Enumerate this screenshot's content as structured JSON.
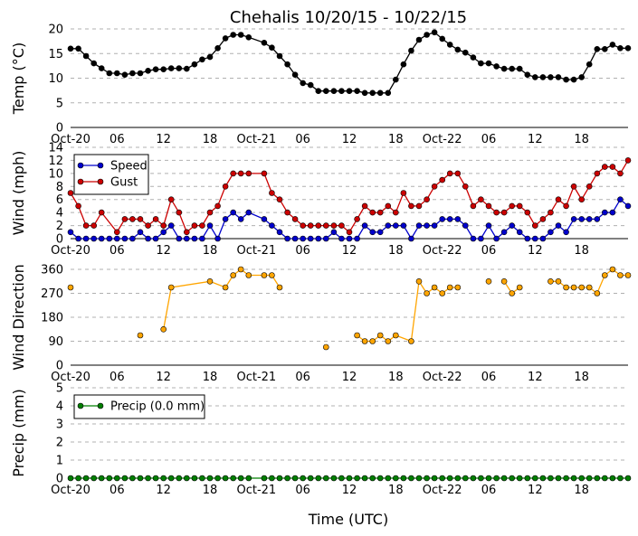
{
  "figure": {
    "title": "Chehalis 10/20/15 - 10/22/15",
    "xlabel": "Time (UTC)",
    "x_tick_labels": [
      "Oct-20",
      "06",
      "12",
      "18",
      "Oct-21",
      "06",
      "12",
      "18",
      "Oct-22",
      "06",
      "12",
      "18"
    ],
    "x_tick_hours": [
      0,
      6,
      12,
      18,
      24,
      30,
      36,
      42,
      48,
      54,
      60,
      66
    ],
    "xlim": [
      0,
      72
    ]
  },
  "chart_data": [
    {
      "type": "line",
      "ylabel": "Temp (°C)",
      "ylim": [
        0,
        20
      ],
      "yticks": [
        0,
        5,
        10,
        15,
        20
      ],
      "grid": true,
      "series": [
        {
          "color": "#000000",
          "x": [
            0,
            1,
            2,
            3,
            4,
            5,
            6,
            7,
            8,
            9,
            10,
            11,
            12,
            13,
            14,
            15,
            16,
            17,
            18,
            19,
            20,
            21,
            22,
            23,
            25,
            26,
            27,
            28,
            29,
            30,
            31,
            32,
            33,
            34,
            35,
            36,
            37,
            38,
            39,
            40,
            41,
            42,
            43,
            44,
            45,
            46,
            47,
            48,
            49,
            50,
            51,
            52,
            53,
            54,
            55,
            56,
            57,
            58,
            59,
            60,
            61,
            62,
            63,
            64,
            65,
            66,
            67,
            68,
            69,
            70,
            71,
            72
          ],
          "values": [
            16,
            16,
            14.5,
            13,
            12,
            11,
            11,
            10.7,
            11,
            11,
            11.5,
            11.8,
            11.8,
            12,
            12,
            11.9,
            12.8,
            13.8,
            14.3,
            16.1,
            18.1,
            18.8,
            18.8,
            18.3,
            17.2,
            16.2,
            14.5,
            12.8,
            10.7,
            9,
            8.6,
            7.4,
            7.4,
            7.4,
            7.4,
            7.4,
            7.4,
            7,
            7,
            7,
            7,
            9.7,
            12.8,
            15.6,
            17.8,
            18.8,
            19.3,
            18,
            16.8,
            15.8,
            15.2,
            14.2,
            13,
            13,
            12.4,
            11.9,
            11.9,
            11.9,
            10.7,
            10.2,
            10.2,
            10.2,
            10.2,
            9.7,
            9.7,
            10.2,
            12.8,
            15.9,
            15.9,
            16.8,
            16.1,
            16.1
          ]
        }
      ]
    },
    {
      "type": "line",
      "ylabel": "Wind (mph)",
      "ylim": [
        0,
        14
      ],
      "yticks": [
        0,
        2,
        4,
        6,
        8,
        10,
        12,
        14
      ],
      "grid": true,
      "legend": "top-left",
      "series": [
        {
          "name": "Speed",
          "color": "#0000cc",
          "x": [
            0,
            1,
            2,
            3,
            4,
            5,
            6,
            7,
            8,
            9,
            10,
            11,
            12,
            13,
            14,
            15,
            16,
            17,
            18,
            19,
            20,
            21,
            22,
            23,
            25,
            26,
            27,
            28,
            29,
            30,
            31,
            32,
            33,
            34,
            35,
            36,
            37,
            38,
            39,
            40,
            41,
            42,
            43,
            44,
            45,
            46,
            47,
            48,
            49,
            50,
            51,
            52,
            53,
            54,
            55,
            56,
            57,
            58,
            59,
            60,
            61,
            62,
            63,
            64,
            65,
            66,
            67,
            68,
            69,
            70,
            71,
            72
          ],
          "values": [
            1,
            0,
            0,
            0,
            0,
            0,
            0,
            0,
            0,
            1,
            0,
            0,
            1,
            2,
            0,
            0,
            0,
            0,
            2,
            0,
            3,
            4,
            3,
            4,
            3,
            2,
            1,
            0,
            0,
            0,
            0,
            0,
            0,
            1,
            0,
            0,
            0,
            2,
            1,
            1,
            2,
            2,
            2,
            0,
            2,
            2,
            2,
            3,
            3,
            3,
            2,
            0,
            0,
            2,
            0,
            1,
            2,
            1,
            0,
            0,
            0,
            1,
            2,
            1,
            3,
            3,
            3,
            3,
            4,
            4,
            6,
            5
          ]
        },
        {
          "name": "Gust",
          "color": "#cc0000",
          "x": [
            0,
            1,
            2,
            3,
            4,
            6,
            7,
            8,
            9,
            10,
            11,
            12,
            13,
            14,
            15,
            16,
            17,
            18,
            19,
            20,
            21,
            22,
            23,
            25,
            26,
            27,
            28,
            29,
            30,
            31,
            32,
            33,
            34,
            35,
            36,
            37,
            38,
            39,
            40,
            41,
            42,
            43,
            44,
            45,
            46,
            47,
            48,
            49,
            50,
            51,
            52,
            53,
            54,
            55,
            56,
            57,
            58,
            59,
            60,
            61,
            62,
            63,
            64,
            65,
            66,
            67,
            68,
            69,
            70,
            71,
            72
          ],
          "values": [
            7,
            5,
            2,
            2,
            4,
            1,
            3,
            3,
            3,
            2,
            3,
            2,
            6,
            4,
            1,
            2,
            2,
            4,
            5,
            8,
            10,
            10,
            10,
            10,
            7,
            6,
            4,
            3,
            2,
            2,
            2,
            2,
            2,
            2,
            1,
            3,
            5,
            4,
            4,
            5,
            4,
            7,
            5,
            5,
            6,
            8,
            9,
            10,
            10,
            8,
            5,
            6,
            5,
            4,
            4,
            5,
            5,
            4,
            2,
            3,
            4,
            6,
            5,
            8,
            6,
            8,
            10,
            11,
            11,
            10,
            12
          ]
        }
      ]
    },
    {
      "type": "line",
      "ylabel": "Wind Direction",
      "ylim": [
        0,
        360
      ],
      "yticks": [
        0,
        90,
        180,
        270,
        360
      ],
      "grid": true,
      "series": [
        {
          "color": "#ffa500",
          "x": [
            0,
            9,
            12,
            13,
            18,
            20,
            21,
            22,
            23,
            25,
            26,
            27,
            33,
            37,
            38,
            39,
            40,
            41,
            42,
            44,
            45,
            46,
            47,
            48,
            49,
            50,
            51,
            52,
            53,
            54,
            55,
            56,
            57,
            58,
            59,
            60,
            61,
            62,
            63,
            64,
            65,
            66,
            67,
            68,
            69,
            70,
            71,
            72
          ],
          "values": [
            292,
            null,
            135,
            292,
            315,
            292,
            338,
            360,
            338,
            338,
            338,
            292,
            null,
            112,
            90,
            90,
            112,
            90,
            112,
            90,
            315,
            270,
            292,
            270,
            292,
            292,
            null,
            null,
            null,
            315,
            null,
            315,
            270,
            292,
            null,
            null,
            null,
            315,
            315,
            292,
            292,
            292,
            292,
            270,
            338,
            360,
            338,
            338
          ]
        },
        {
          "color": "#ffa500",
          "x": [
            33
          ],
          "values": [
            68
          ]
        },
        {
          "color": "#ffa500",
          "x": [
            9
          ],
          "values": [
            112
          ]
        }
      ]
    },
    {
      "type": "line",
      "ylabel": "Precip (mm)",
      "ylim": [
        0,
        5
      ],
      "yticks": [
        0,
        1,
        2,
        3,
        4,
        5
      ],
      "grid": true,
      "legend": "top-left",
      "series": [
        {
          "name": "Precip (0.0 mm)",
          "color": "#007f00",
          "x": [
            0,
            1,
            2,
            3,
            4,
            5,
            6,
            7,
            8,
            9,
            10,
            11,
            12,
            13,
            14,
            15,
            16,
            17,
            18,
            19,
            20,
            21,
            22,
            23,
            25,
            26,
            27,
            28,
            29,
            30,
            31,
            32,
            33,
            34,
            35,
            36,
            37,
            38,
            39,
            40,
            41,
            42,
            43,
            44,
            45,
            46,
            47,
            48,
            49,
            50,
            51,
            52,
            53,
            54,
            55,
            56,
            57,
            58,
            59,
            60,
            61,
            62,
            63,
            64,
            65,
            66,
            67,
            68,
            69,
            70,
            71,
            72
          ],
          "values": [
            0,
            0,
            0,
            0,
            0,
            0,
            0,
            0,
            0,
            0,
            0,
            0,
            0,
            0,
            0,
            0,
            0,
            0,
            0,
            0,
            0,
            0,
            0,
            0,
            0,
            0,
            0,
            0,
            0,
            0,
            0,
            0,
            0,
            0,
            0,
            0,
            0,
            0,
            0,
            0,
            0,
            0,
            0,
            0,
            0,
            0,
            0,
            0,
            0,
            0,
            0,
            0,
            0,
            0,
            0,
            0,
            0,
            0,
            0,
            0,
            0,
            0,
            0,
            0,
            0,
            0,
            0,
            0,
            0,
            0,
            0,
            0
          ]
        }
      ]
    }
  ]
}
